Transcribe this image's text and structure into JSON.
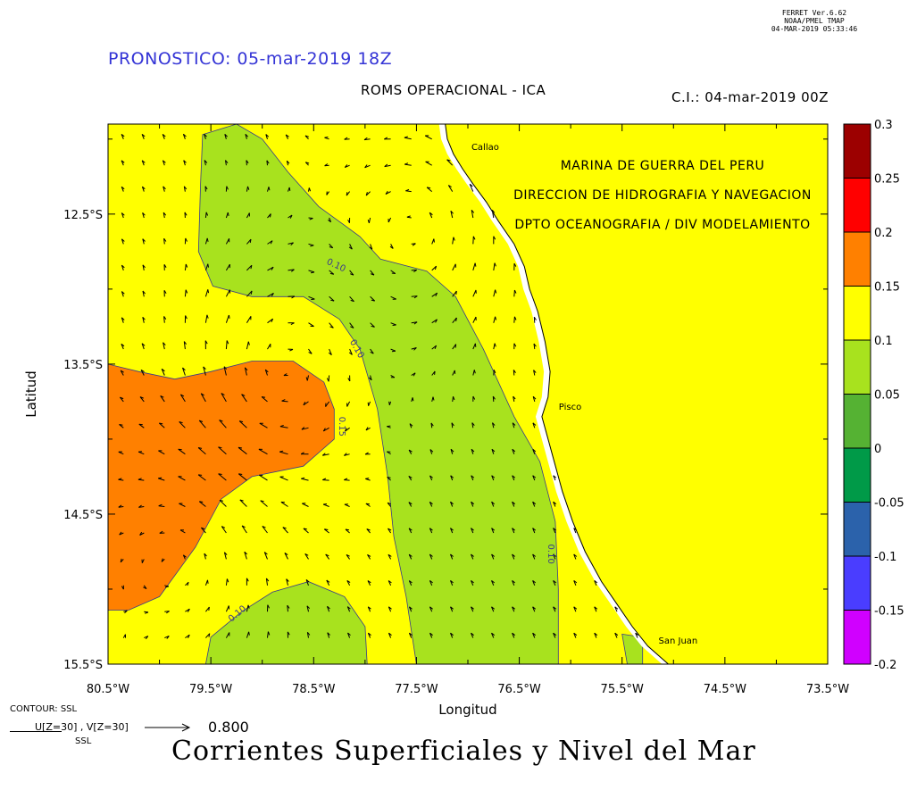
{
  "header": {
    "ferret_lines": [
      "FERRET  Ver.6.62",
      "NOAA/PMEL TMAP",
      "04-MAR-2019 05:33:46"
    ],
    "forecast": "PRONOSTICO: 05-mar-2019 18Z",
    "subtitle": "ROMS OPERACIONAL - ICA",
    "ci": "C.I.: 04-mar-2019 00Z"
  },
  "institution": [
    "MARINA DE GUERRA DEL PERU",
    "DIRECCION DE HIDROGRAFIA Y NAVEGACION",
    "DPTO OCEANOGRAFIA / DIV MODELAMIENTO"
  ],
  "places": [
    {
      "name": "Callao",
      "lon": -77.07,
      "lat": -12.05
    },
    {
      "name": "Pisco",
      "lon": -76.22,
      "lat": -13.78
    },
    {
      "name": "San Juan",
      "lon": -75.25,
      "lat": -15.34
    }
  ],
  "legend_key": {
    "contour": "CONTOUR: SSL",
    "vectors": "U[Z=30] , V[Z=30]",
    "ssl": "SSL",
    "scale": "0.800"
  },
  "main_title": "Corrientes Superficiales y Nivel del Mar",
  "colors": {
    "land": "#ffff00",
    "coast_gap": "#ffffff",
    "contour_line": "#3a3a8a",
    "title_blue": "#3434d6"
  },
  "chart_data": {
    "type": "contour",
    "xlabel": "Longitud",
    "ylabel": "Latitud",
    "xlim": [
      -80.5,
      -73.5
    ],
    "ylim": [
      -15.5,
      -11.9
    ],
    "xticks": [
      {
        "v": -80.5,
        "label": "80.5°W"
      },
      {
        "v": -79.5,
        "label": "79.5°W"
      },
      {
        "v": -78.5,
        "label": "78.5°W"
      },
      {
        "v": -77.5,
        "label": "77.5°W"
      },
      {
        "v": -76.5,
        "label": "76.5°W"
      },
      {
        "v": -75.5,
        "label": "75.5°W"
      },
      {
        "v": -74.5,
        "label": "74.5°W"
      },
      {
        "v": -73.5,
        "label": "73.5°W"
      }
    ],
    "yticks": [
      {
        "v": -12.5,
        "label": "12.5°S"
      },
      {
        "v": -13.5,
        "label": "13.5°S"
      },
      {
        "v": -14.5,
        "label": "14.5°S"
      },
      {
        "v": -15.5,
        "label": "15.5°S"
      }
    ],
    "colorbar": {
      "levels": [
        -0.2,
        -0.15,
        -0.1,
        -0.05,
        0,
        0.05,
        0.1,
        0.15,
        0.2,
        0.25,
        0.3
      ],
      "labels": [
        "-0.2",
        "-0.15",
        "-0.1",
        "-0.05",
        "0",
        "0.05",
        "0.1",
        "0.15",
        "0.2",
        "0.25",
        "0.3"
      ],
      "colors": [
        "#d000ff",
        "#4a3dff",
        "#2b62ab",
        "#009a48",
        "#55b233",
        "#a8e21e",
        "#ffff00",
        "#ff8000",
        "#ff0000",
        "#9c0000"
      ]
    },
    "background_level": 0.1,
    "regions": [
      {
        "name": "ssl-region-north",
        "level": 0.05,
        "pts": [
          [
            -79.58,
            -11.97
          ],
          [
            -79.25,
            -11.9
          ],
          [
            -79.0,
            -12.0
          ],
          [
            -78.75,
            -12.22
          ],
          [
            -78.45,
            -12.45
          ],
          [
            -78.05,
            -12.65
          ],
          [
            -77.85,
            -12.8
          ],
          [
            -77.4,
            -12.88
          ],
          [
            -77.12,
            -13.05
          ],
          [
            -76.85,
            -13.4
          ],
          [
            -76.55,
            -13.85
          ],
          [
            -76.3,
            -14.15
          ],
          [
            -76.15,
            -14.55
          ],
          [
            -76.12,
            -15.0
          ],
          [
            -76.12,
            -15.5
          ],
          [
            -77.5,
            -15.5
          ],
          [
            -77.6,
            -15.05
          ],
          [
            -77.72,
            -14.65
          ],
          [
            -77.78,
            -14.25
          ],
          [
            -77.88,
            -13.8
          ],
          [
            -78.05,
            -13.4
          ],
          [
            -78.25,
            -13.2
          ],
          [
            -78.6,
            -13.05
          ],
          [
            -79.1,
            -13.05
          ],
          [
            -79.48,
            -12.98
          ],
          [
            -79.62,
            -12.75
          ],
          [
            -79.6,
            -12.3
          ],
          [
            -79.58,
            -11.97
          ]
        ]
      },
      {
        "name": "ssl-region-south",
        "level": 0.05,
        "pts": [
          [
            -79.55,
            -15.5
          ],
          [
            -79.5,
            -15.32
          ],
          [
            -79.2,
            -15.15
          ],
          [
            -78.9,
            -15.02
          ],
          [
            -78.55,
            -14.95
          ],
          [
            -78.2,
            -15.05
          ],
          [
            -78.0,
            -15.25
          ],
          [
            -77.98,
            -15.5
          ]
        ]
      },
      {
        "name": "ssl-region-west",
        "level": 0.15,
        "pts": [
          [
            -80.5,
            -13.5
          ],
          [
            -80.2,
            -13.55
          ],
          [
            -79.85,
            -13.6
          ],
          [
            -79.5,
            -13.55
          ],
          [
            -79.1,
            -13.48
          ],
          [
            -78.7,
            -13.48
          ],
          [
            -78.4,
            -13.62
          ],
          [
            -78.3,
            -13.8
          ],
          [
            -78.3,
            -14.0
          ],
          [
            -78.6,
            -14.18
          ],
          [
            -79.1,
            -14.25
          ],
          [
            -79.4,
            -14.4
          ],
          [
            -79.65,
            -14.72
          ],
          [
            -80.0,
            -15.05
          ],
          [
            -80.3,
            -15.14
          ],
          [
            -80.5,
            -15.14
          ]
        ]
      },
      {
        "name": "ssl-region-coast",
        "level": 0.05,
        "pts": [
          [
            -75.5,
            -15.3
          ],
          [
            -75.3,
            -15.32
          ],
          [
            -75.3,
            -15.5
          ],
          [
            -75.45,
            -15.5
          ]
        ]
      }
    ],
    "contour_labels": [
      {
        "text": "0.10",
        "lon": -78.38,
        "lat": -12.83,
        "angle": 25
      },
      {
        "text": "0.10",
        "lon": -78.15,
        "lat": -13.35,
        "angle": 60
      },
      {
        "text": "0.15",
        "lon": -78.25,
        "lat": -13.85,
        "angle": 90
      },
      {
        "text": "0.10",
        "lon": -76.22,
        "lat": -14.7,
        "angle": 90
      },
      {
        "text": "0.10",
        "lon": -79.3,
        "lat": -15.22,
        "angle": -40
      }
    ],
    "coastline": [
      [
        -77.22,
        -11.9
      ],
      [
        -77.2,
        -12.0
      ],
      [
        -77.14,
        -12.1
      ],
      [
        -77.05,
        -12.2
      ],
      [
        -76.95,
        -12.3
      ],
      [
        -76.82,
        -12.42
      ],
      [
        -76.7,
        -12.55
      ],
      [
        -76.55,
        -12.7
      ],
      [
        -76.45,
        -12.85
      ],
      [
        -76.4,
        -13.0
      ],
      [
        -76.32,
        -13.15
      ],
      [
        -76.25,
        -13.35
      ],
      [
        -76.2,
        -13.55
      ],
      [
        -76.22,
        -13.72
      ],
      [
        -76.28,
        -13.85
      ],
      [
        -76.22,
        -14.0
      ],
      [
        -76.16,
        -14.15
      ],
      [
        -76.08,
        -14.35
      ],
      [
        -75.98,
        -14.55
      ],
      [
        -75.86,
        -14.75
      ],
      [
        -75.7,
        -14.95
      ],
      [
        -75.55,
        -15.1
      ],
      [
        -75.4,
        -15.25
      ],
      [
        -75.25,
        -15.38
      ],
      [
        -75.05,
        -15.5
      ]
    ],
    "vectors": {
      "lon_start": -80.35,
      "lon_step": 0.2,
      "lat_start": -12.0,
      "lat_step": 0.175,
      "eddies": [
        {
          "lon": -78.9,
          "lat": -13.6,
          "strength": -0.9
        },
        {
          "lon": -77.4,
          "lat": -12.55,
          "strength": 0.7
        },
        {
          "lon": -79.6,
          "lat": -14.7,
          "strength": 0.55
        }
      ],
      "mean_flow": [
        -0.05,
        0.12
      ]
    }
  }
}
